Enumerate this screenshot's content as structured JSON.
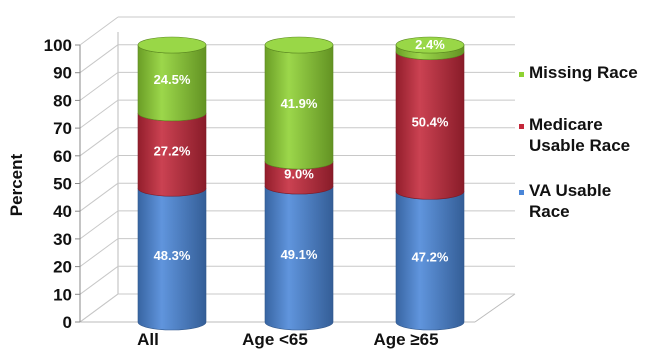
{
  "chart_data": {
    "type": "bar",
    "stacked": true,
    "title": "",
    "xlabel": "",
    "ylabel": "Percent",
    "ylim": [
      0,
      100
    ],
    "yticks": [
      0,
      10,
      20,
      30,
      40,
      50,
      60,
      70,
      80,
      90,
      100
    ],
    "categories": [
      "All",
      "Age <65",
      "Age ≥65"
    ],
    "series": [
      {
        "name": "VA Usable Race",
        "color": "#4a86d8",
        "values": [
          48.3,
          49.1,
          47.2
        ],
        "labels": [
          "48.3%",
          "49.1%",
          "47.2%"
        ]
      },
      {
        "name": "Medicare Usable Race",
        "color": "#c4283a",
        "values": [
          27.2,
          9.0,
          50.4
        ],
        "labels": [
          "27.2%",
          "9.0%",
          "50.4%"
        ]
      },
      {
        "name": "Missing Race",
        "color": "#8ed232",
        "values": [
          24.5,
          41.9,
          2.4
        ],
        "labels": [
          "24.5%",
          "41.9%",
          "2.4%"
        ]
      }
    ],
    "legend": {
      "placement": "right",
      "entries": [
        {
          "series": 2,
          "lines": [
            "Missing Race"
          ]
        },
        {
          "series": 1,
          "lines": [
            "Medicare",
            "Usable Race"
          ]
        },
        {
          "series": 0,
          "lines": [
            "VA Usable",
            "Race"
          ]
        }
      ]
    },
    "grid": true,
    "style": "3d-cylinder"
  }
}
